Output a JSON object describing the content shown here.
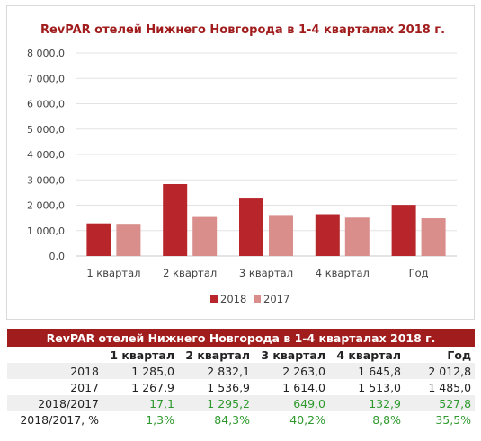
{
  "chart_data": {
    "type": "bar",
    "title": "RevPAR отелей Нижнего Новгорода в 1-4 кварталах 2018 г.",
    "categories": [
      "1 квартал",
      "2 квартал",
      "3 квартал",
      "4 квартал",
      "Год"
    ],
    "series": [
      {
        "name": "2018",
        "values": [
          1285.0,
          2832.1,
          2263.0,
          1645.8,
          2012.8
        ],
        "color": "#b8262c"
      },
      {
        "name": "2017",
        "values": [
          1267.9,
          1536.9,
          1614.0,
          1513.0,
          1485.0
        ],
        "color": "#d98e8c"
      }
    ],
    "ylim": [
      0,
      8000
    ],
    "yticks": [
      "0,0",
      "1 000,0",
      "2 000,0",
      "3 000,0",
      "4 000,0",
      "5 000,0",
      "6 000,0",
      "7 000,0",
      "8 000,0"
    ],
    "grid": true,
    "legend_position": "bottom"
  },
  "table": {
    "title": "RevPAR отелей Нижнего Новгорода в 1-4 кварталах 2018 г.",
    "headers": [
      "",
      "1 квартал",
      "2 квартал",
      "3 квартал",
      "4 квартал",
      "Год"
    ],
    "rows": [
      [
        "2018",
        "1 285,0",
        "2 832,1",
        "2 263,0",
        "1 645,8",
        "2 012,8"
      ],
      [
        "2017",
        "1 267,9",
        "1 536,9",
        "1 614,0",
        "1 513,0",
        "1 485,0"
      ],
      [
        "2018/2017",
        "17,1",
        "1 295,2",
        "649,0",
        "132,9",
        "527,8"
      ],
      [
        "2018/2017, %",
        "1,3%",
        "84,3%",
        "40,2%",
        "8,8%",
        "35,5%"
      ]
    ]
  }
}
